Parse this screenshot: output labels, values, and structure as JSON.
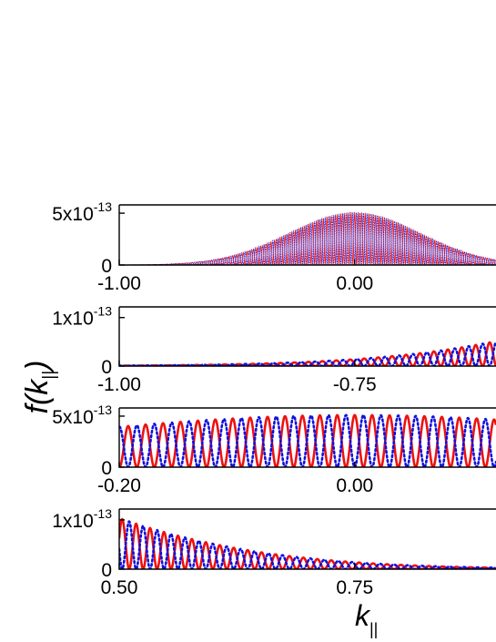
{
  "figure": {
    "ylabel": "f(k",
    "ylabel_sub": "||",
    "ylabel_close": ")",
    "xlabel": "k",
    "xlabel_sub": "||"
  },
  "colors": {
    "red": "#ee1111",
    "blue": "#1111dd"
  },
  "chart_data": [
    {
      "type": "line",
      "panel": "1",
      "xlim": [
        -1.0,
        0.6
      ],
      "ylim": [
        0,
        5.8e-13
      ],
      "xticks": [
        -1.0,
        0.0
      ],
      "xtick_labels": [
        "-1.00",
        "0.00"
      ],
      "yticks": [
        0,
        5e-13
      ],
      "ytick_labels": [
        {
          "base": "0",
          "exp": ""
        },
        {
          "base": "5x10",
          "exp": "-13"
        }
      ],
      "envelope": {
        "shape": "gaussian",
        "center": 0.0,
        "sigma": 0.28,
        "peak": 5.1e-13
      },
      "oscillation_period": 0.0148,
      "series": [
        {
          "color": "red",
          "style": "solid",
          "phase": 0.0
        },
        {
          "color": "blue",
          "style": "dotted",
          "phase": 0.5
        }
      ]
    },
    {
      "type": "line",
      "panel": "2",
      "xlim": [
        -1.0,
        -0.6
      ],
      "ylim": [
        0,
        1.22e-13
      ],
      "xticks": [
        -1.0,
        -0.75
      ],
      "xtick_labels": [
        "-1.00",
        "-0.75"
      ],
      "yticks": [
        0,
        1e-13
      ],
      "ytick_labels": [
        {
          "base": "0",
          "exp": ""
        },
        {
          "base": "1x10",
          "exp": "-13"
        }
      ],
      "envelope": {
        "shape": "gaussian",
        "center": 0.0,
        "sigma": 0.28,
        "peak": 5.1e-13
      },
      "oscillation_period": 0.0148,
      "series": [
        {
          "color": "red",
          "style": "solid",
          "phase": 0.0
        },
        {
          "color": "blue",
          "style": "dotted",
          "phase": 0.5
        }
      ]
    },
    {
      "type": "line",
      "panel": "3",
      "xlim": [
        -0.2,
        0.12
      ],
      "ylim": [
        0,
        5.8e-13
      ],
      "xticks": [
        -0.2,
        0.0
      ],
      "xtick_labels": [
        "-0.20",
        "0.00"
      ],
      "yticks": [
        0,
        5e-13
      ],
      "ytick_labels": [
        {
          "base": "0",
          "exp": ""
        },
        {
          "base": "5x10",
          "exp": "-13"
        }
      ],
      "envelope": {
        "shape": "gaussian",
        "center": 0.0,
        "sigma": 0.28,
        "peak": 5.1e-13
      },
      "oscillation_period": 0.0148,
      "series": [
        {
          "color": "red",
          "style": "solid",
          "phase": 0.0
        },
        {
          "color": "blue",
          "style": "dotted",
          "phase": 0.5
        }
      ]
    },
    {
      "type": "line",
      "panel": "4",
      "xlim": [
        0.5,
        0.9
      ],
      "ylim": [
        0,
        1.22e-13
      ],
      "xticks": [
        0.5,
        0.75
      ],
      "xtick_labels": [
        "0.50",
        "0.75"
      ],
      "yticks": [
        0,
        1e-13
      ],
      "ytick_labels": [
        {
          "base": "0",
          "exp": ""
        },
        {
          "base": "1x10",
          "exp": "-13"
        }
      ],
      "envelope": {
        "shape": "gaussian",
        "center": 0.0,
        "sigma": 0.28,
        "peak": 5.1e-13
      },
      "oscillation_period": 0.0148,
      "series": [
        {
          "color": "red",
          "style": "solid",
          "phase": 0.0
        },
        {
          "color": "blue",
          "style": "dotted",
          "phase": 0.5
        }
      ]
    }
  ]
}
